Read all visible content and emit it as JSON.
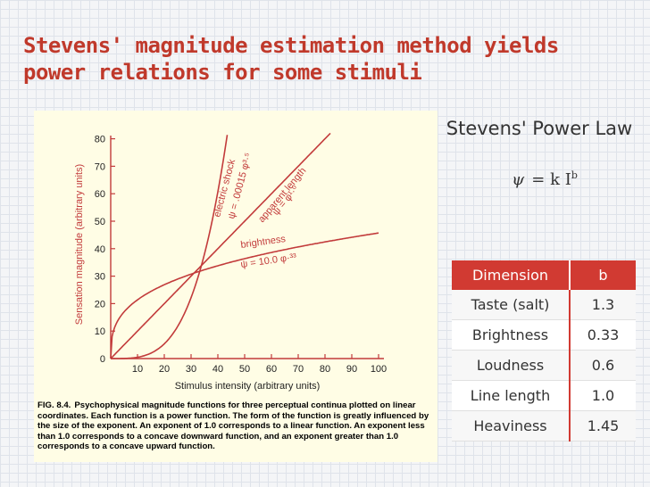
{
  "slide": {
    "title": "Stevens' magnitude estimation method yields power relations for some stimuli",
    "law_heading": "Stevens' Power Law",
    "formula": {
      "psi": "ψ",
      "rhs": "= k I",
      "exponent": "b"
    }
  },
  "figure": {
    "y_axis_label": "Sensation magnitude (arbitrary units)",
    "x_axis_label": "Stimulus intensity (arbitrary units)",
    "y_ticks": [
      "0",
      "10",
      "20",
      "30",
      "40",
      "50",
      "60",
      "70",
      "80"
    ],
    "x_ticks": [
      "10",
      "20",
      "30",
      "40",
      "50",
      "60",
      "70",
      "80",
      "90",
      "100"
    ],
    "curve_labels": {
      "electric_shock": "electric shock",
      "electric_shock_eq": "ψ = .00015 φ³·⁵",
      "apparent_length": "apparent length",
      "apparent_length_eq": "ψ = φ¹·⁰",
      "brightness": "brightness",
      "brightness_eq": "ψ = 10.0 φ·³³"
    },
    "caption_label": "FIG. 8.4.",
    "caption_text": "Psychophysical magnitude functions for three perceptual continua plotted on linear coordinates. Each function is a power function. The form of the function is greatly influenced by the size of the exponent. An exponent of 1.0 corresponds to a linear function. An exponent less than 1.0 corresponds to a concave downward function, and an exponent greater than 1.0 corresponds to a concave upward function.",
    "curve_color": "#c23b3b"
  },
  "table": {
    "headers": [
      "Dimension",
      "b"
    ],
    "rows": [
      [
        "Taste (salt)",
        "1.3"
      ],
      [
        "Brightness",
        "0.33"
      ],
      [
        "Loudness",
        "0.6"
      ],
      [
        "Line length",
        "1.0"
      ],
      [
        "Heaviness",
        "1.45"
      ]
    ]
  }
}
